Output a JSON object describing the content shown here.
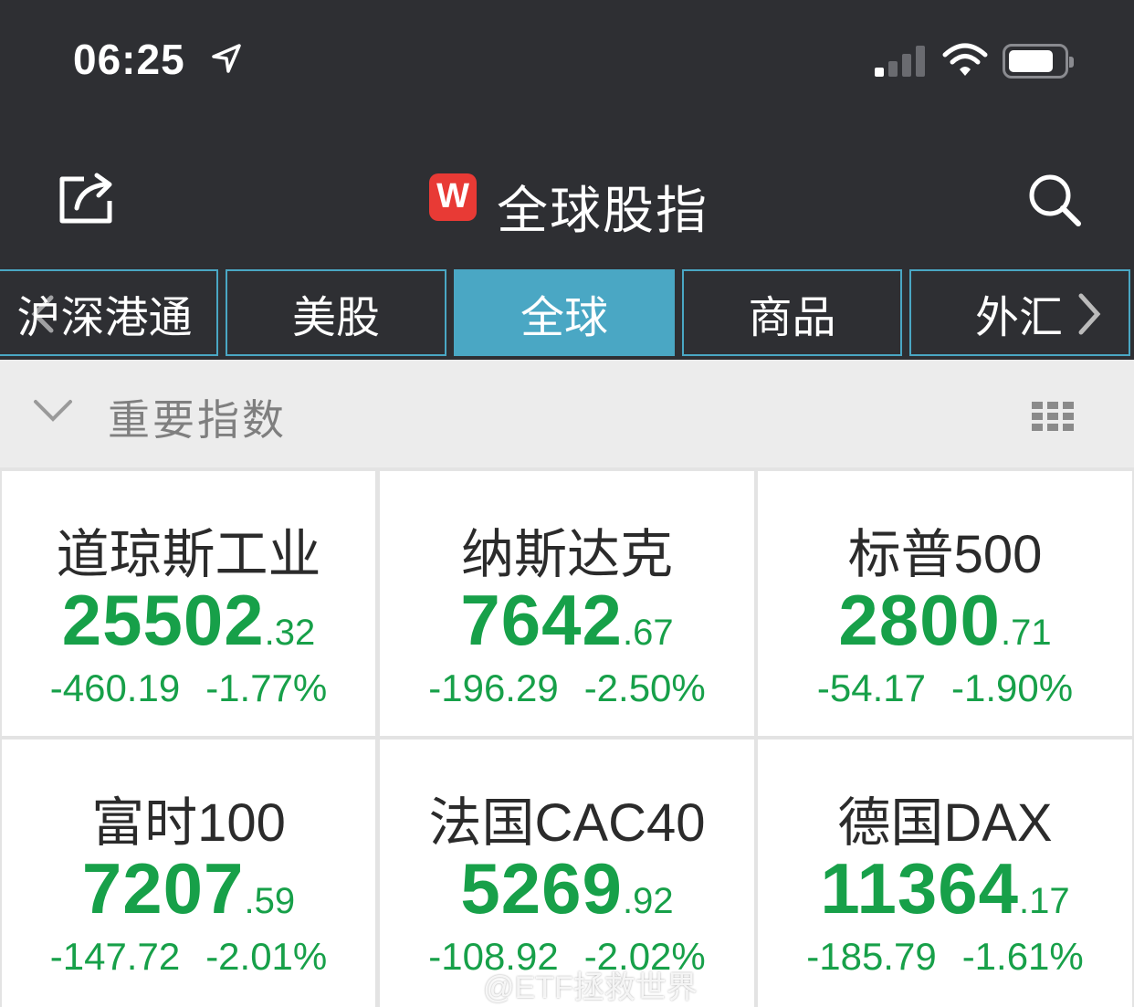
{
  "status_bar": {
    "time": "06:25",
    "icons": [
      "location-arrow-icon",
      "cellular-signal-icon",
      "wifi-icon",
      "battery-icon"
    ]
  },
  "nav": {
    "title": "全球股指",
    "logo_letter": "W",
    "logo_color": "#e83a35",
    "left_icon": "share-icon",
    "right_icon": "search-icon"
  },
  "tabs": [
    {
      "label": "沪深港通",
      "active": false
    },
    {
      "label": "美股",
      "active": false
    },
    {
      "label": "全球",
      "active": true
    },
    {
      "label": "商品",
      "active": false
    },
    {
      "label": "外汇",
      "active": false
    }
  ],
  "section": {
    "title": "重要指数",
    "collapse_icon": "chevron-down-icon",
    "layout_icon": "grid-icon"
  },
  "colors": {
    "accent": "#4aa7c4",
    "down": "#17a049",
    "dark_bg": "#2e2f33"
  },
  "indices": [
    {
      "name": "道琼斯工业",
      "price_int": "25502",
      "price_dec": ".32",
      "change": "-460.19",
      "percent": "-1.77%"
    },
    {
      "name": "纳斯达克",
      "price_int": "7642",
      "price_dec": ".67",
      "change": "-196.29",
      "percent": "-2.50%"
    },
    {
      "name": "标普500",
      "price_int": "2800",
      "price_dec": ".71",
      "change": "-54.17",
      "percent": "-1.90%"
    },
    {
      "name": "富时100",
      "price_int": "7207",
      "price_dec": ".59",
      "change": "-147.72",
      "percent": "-2.01%"
    },
    {
      "name": "法国CAC40",
      "price_int": "5269",
      "price_dec": ".92",
      "change": "-108.92",
      "percent": "-2.02%"
    },
    {
      "name": "德国DAX",
      "price_int": "11364",
      "price_dec": ".17",
      "change": "-185.79",
      "percent": "-1.61%"
    }
  ],
  "watermark": "@ETF拯救世界"
}
